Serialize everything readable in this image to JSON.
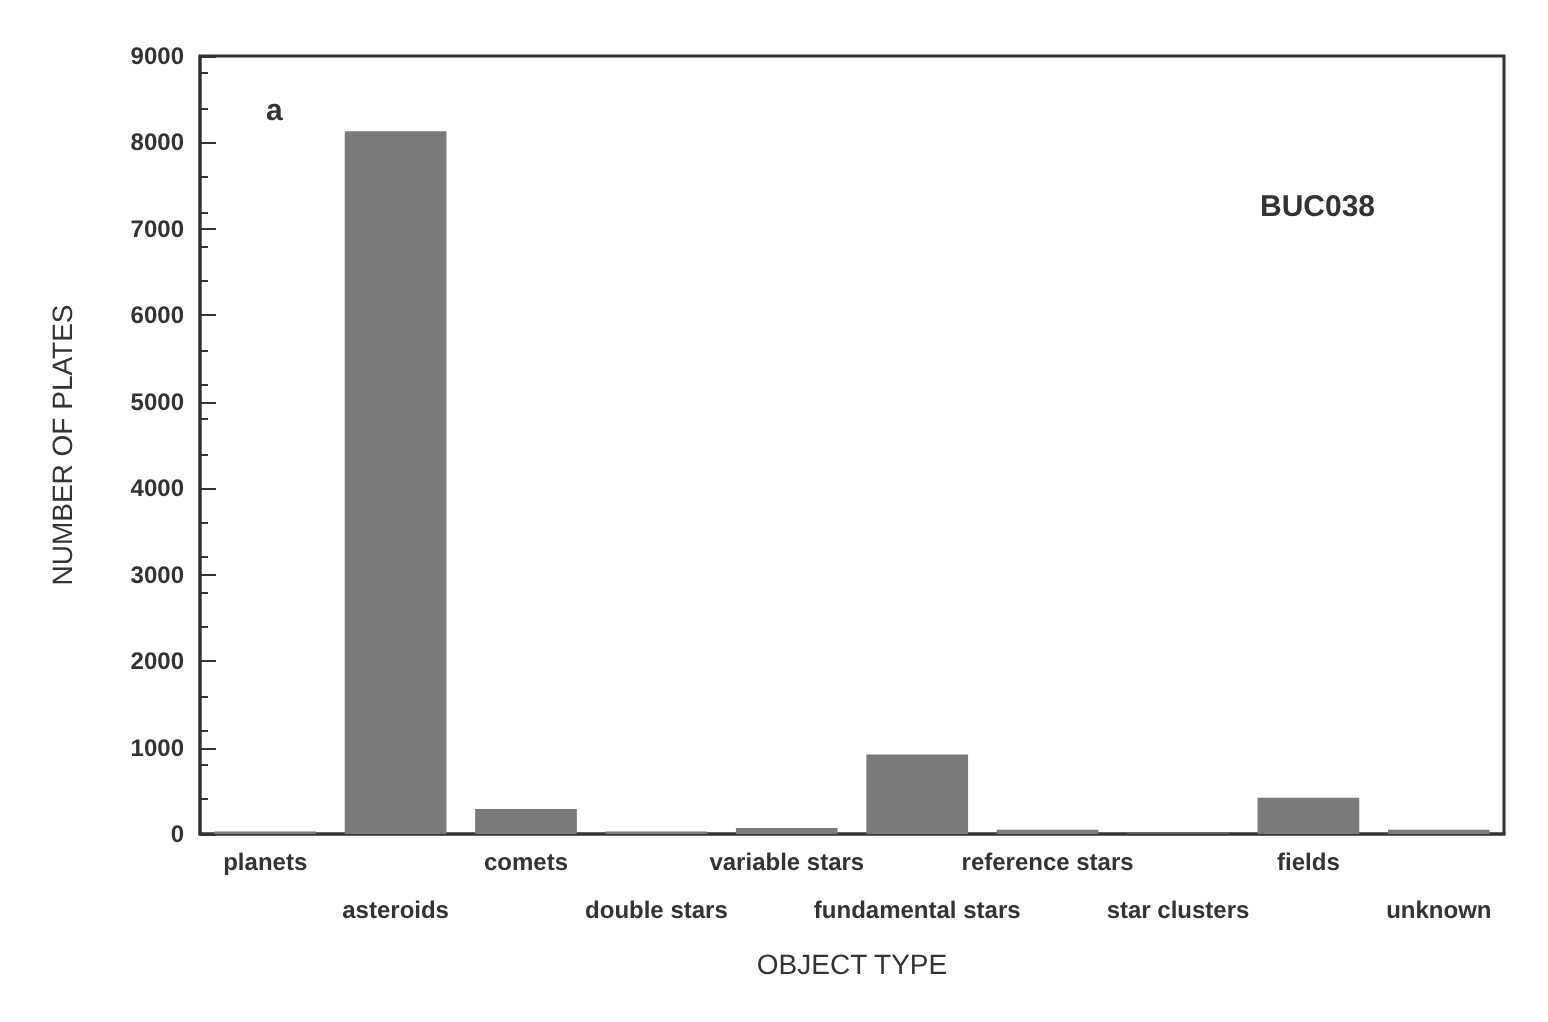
{
  "chart_data": {
    "type": "bar",
    "xlabel": "OBJECT TYPE",
    "ylabel": "NUMBER OF PLATES",
    "categories": [
      "planets",
      "asteroids",
      "comets",
      "double stars",
      "variable stars",
      "fundamental stars",
      "reference stars",
      "star clusters",
      "fields",
      "unknown"
    ],
    "values": [
      30,
      8130,
      290,
      30,
      70,
      920,
      50,
      10,
      420,
      50
    ],
    "color": "#7a7a7a",
    "ylim": [
      0,
      9000
    ],
    "yticks": [
      0,
      1000,
      2000,
      3000,
      4000,
      5000,
      6000,
      7000,
      8000,
      9000
    ],
    "grid": false,
    "annotations": [
      "a",
      "BUC038"
    ]
  }
}
